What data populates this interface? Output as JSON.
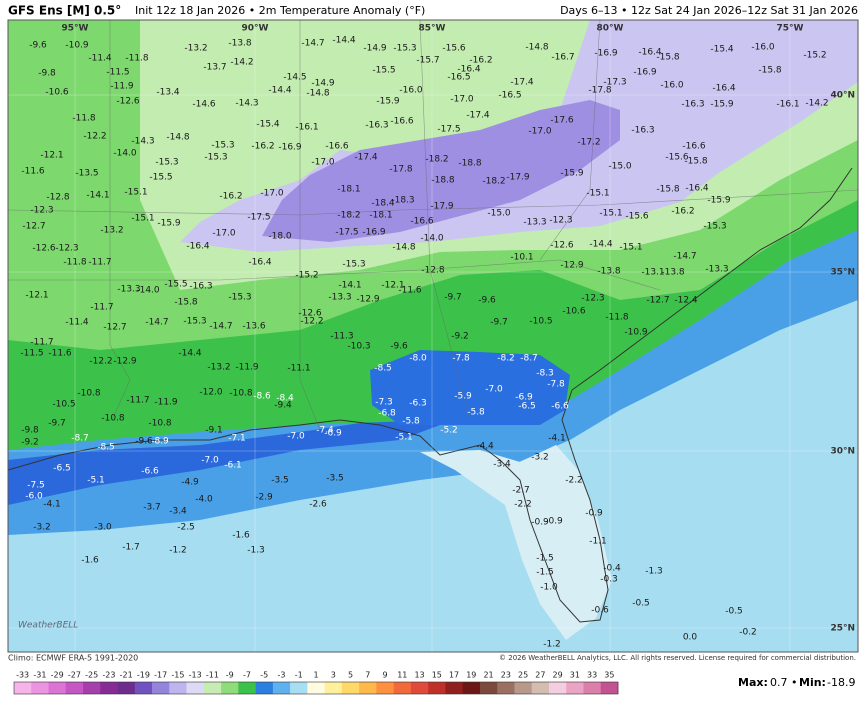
{
  "header": {
    "model": "GFS Ens [M] 0.5°",
    "init": "Init 12z 18 Jan 2026 • 2m Temperature Anomaly (°F)",
    "period": "Days 6–13 • 12z Sat 24 Jan 2026–12z Sat 31 Jan 2026"
  },
  "map": {
    "lon_labels": [
      "95°W",
      "90°W",
      "85°W",
      "80°W",
      "75°W"
    ],
    "lat_labels": [
      "40°N",
      "35°N",
      "30°N",
      "25°N"
    ],
    "logo": "WeatherBELL",
    "values": [
      "-9.6",
      "-10.9",
      "-11.4",
      "-11.8",
      "-11.5",
      "-9.8",
      "-11.9",
      "-13.4",
      "-12.6",
      "-10.6",
      "-14.6",
      "-14.3",
      "-13.2",
      "-13.8",
      "-14.2",
      "-13.7",
      "-14.7",
      "-14.4",
      "-14.9",
      "-15.3",
      "-15.6",
      "-15.7",
      "-14.8",
      "-16.7",
      "-16.9",
      "-16.4",
      "-15.8",
      "-15.4",
      "-16.0",
      "-15.2",
      "-14.5",
      "-14.9",
      "-14.4",
      "-14.8",
      "-15.5",
      "-16.2",
      "-16.4",
      "-16.5",
      "-17.4",
      "-16.5",
      "-17.0",
      "-16.0",
      "-15.9",
      "-17.4",
      "-17.8",
      "-17.3",
      "-16.9",
      "-16.0",
      "-16.4",
      "-15.8",
      "-16.3",
      "-15.9",
      "-16.1",
      "-14.2",
      "-11.8",
      "-12.2",
      "-14.3",
      "-14.8",
      "-14.0",
      "-15.3",
      "-15.3",
      "-15.3",
      "-16.2",
      "-16.9",
      "-15.4",
      "-16.1",
      "-16.3",
      "-16.6",
      "-17.5",
      "-17.0",
      "-17.6",
      "-17.2",
      "-16.3",
      "-16.6",
      "-15.6",
      "-15.8",
      "-12.1",
      "-11.6",
      "-13.5",
      "-15.5",
      "-16.6",
      "-17.0",
      "-17.4",
      "-17.8",
      "-18.2",
      "-18.8",
      "-17.9",
      "-18.1",
      "-18.8",
      "-18.2",
      "-15.9",
      "-15.0",
      "-12.8",
      "-14.1",
      "-15.1",
      "-16.2",
      "-17.0",
      "-18.4",
      "-18.3",
      "-17.9",
      "-15.1",
      "-15.8",
      "-16.4",
      "-12.3",
      "-15.1",
      "-15.9",
      "-17.5",
      "-18.2",
      "-18.1",
      "-16.6",
      "-15.0",
      "-13.3",
      "-12.3",
      "-15.1",
      "-15.6",
      "-16.2",
      "-15.9",
      "-12.7",
      "-13.2",
      "-17.0",
      "-18.0",
      "-17.5",
      "-16.9",
      "-14.0",
      "-15.3",
      "-12.6",
      "-12.3",
      "-16.4",
      "-14.8",
      "-12.6",
      "-14.4",
      "-15.1",
      "-14.7",
      "-11.8",
      "-11.7",
      "-16.4",
      "-15.3",
      "-12.8",
      "-10.1",
      "-12.9",
      "-13.8",
      "-13.1",
      "-13.8",
      "-13.3",
      "-15.2",
      "-13.3",
      "-14.0",
      "-15.5",
      "-16.3",
      "-12.1",
      "-14.1",
      "-12.1",
      "-11.6",
      "-9.7",
      "-9.6",
      "-12.3",
      "-12.7",
      "-12.4",
      "-15.8",
      "-15.3",
      "-13.3",
      "-12.9",
      "-11.7",
      "-11.4",
      "-12.7",
      "-14.7",
      "-15.3",
      "-14.7",
      "-13.6",
      "-12.6",
      "-12.2",
      "-9.7",
      "-10.5",
      "-10.6",
      "-11.8",
      "-10.9",
      "-11.7",
      "-11.5",
      "-11.6",
      "-12.2",
      "-12.9",
      "-14.4",
      "-11.3",
      "-10.3",
      "-9.6",
      "-9.2",
      "-8.0",
      "-7.8",
      "-8.2",
      "-8.7",
      "-13.2",
      "-11.9",
      "-11.1",
      "-8.5",
      "-8.3",
      "-7.8",
      "-10.8",
      "-11.7",
      "-11.9",
      "-12.0",
      "-10.8",
      "-8.6",
      "-8.4",
      "-9.4",
      "-10.5",
      "-7.3",
      "-6.8",
      "-6.3",
      "-5.9",
      "-7.0",
      "-6.9",
      "-6.5",
      "-5.8",
      "-6.6",
      "-10.8",
      "-10.8",
      "-9.8",
      "-9.7",
      "-9.1",
      "-7.4",
      "-6.9",
      "-5.8",
      "-5.2",
      "-4.1",
      "-9.2",
      "-8.7",
      "-9.6",
      "-8.9",
      "-7.1",
      "-7.0",
      "-5.1",
      "-4.4",
      "-8.5",
      "-3.2",
      "-7.0",
      "-6.1",
      "-6.5",
      "-6.6",
      "-3.4",
      "-7.5",
      "-5.1",
      "-4.9",
      "-3.5",
      "-3.5",
      "-2.2",
      "-6.0",
      "-4.0",
      "-2.9",
      "-2.7",
      "-4.1",
      "-3.7",
      "-3.4",
      "-2.6",
      "-2.2",
      "-0.9",
      "-0.9",
      "-0.9",
      "-3.2",
      "-3.0",
      "-2.5",
      "-1.6",
      "-1.1",
      "-1.7",
      "-1.2",
      "-1.3",
      "-1.6",
      "-1.5",
      "-0.4",
      "-1.3",
      "-0.3",
      "-1.5",
      "-1.0",
      "-0.5",
      "-0.6",
      "-0.5",
      "-0.2",
      "0.0",
      "-1.2"
    ]
  },
  "footer": {
    "climo": "Climo: ECMWF ERA-5 1991-2020",
    "copyright": "© 2026 WeatherBELL Analytics, LLC. All rights reserved. License required for commercial distribution.",
    "colorbar": {
      "ticks": [
        -33,
        -31,
        -29,
        -27,
        -25,
        -23,
        -21,
        -19,
        -17,
        -15,
        -13,
        -11,
        -9,
        -7,
        -5,
        -3,
        -1,
        1,
        3,
        5,
        7,
        9,
        11,
        13,
        15,
        17,
        19,
        21,
        23,
        25,
        27,
        29,
        31,
        33,
        35
      ],
      "colors": [
        "#f6b4ea",
        "#ea94e2",
        "#dc74d4",
        "#c656c4",
        "#a63eac",
        "#862c94",
        "#6e2c8c",
        "#6f52c0",
        "#9484dc",
        "#bdb5ee",
        "#dcdaf4",
        "#c6ecb4",
        "#8edc7a",
        "#3cc24a",
        "#2a7fe0",
        "#5eb0ee",
        "#a8def2",
        "#fffbe0",
        "#fff09c",
        "#ffd86a",
        "#ffb84a",
        "#ff9040",
        "#f06a3a",
        "#e04a3a",
        "#c0302a",
        "#902020",
        "#6c1616",
        "#7c4a3c",
        "#9a7060",
        "#b8988a",
        "#d4bcb0",
        "#f2cede",
        "#eaa4c4",
        "#da7eaa",
        "#c25292"
      ]
    },
    "max_label": "Max:",
    "max": "0.7",
    "sep": "•",
    "min_label": "Min:",
    "min": "-18.9"
  }
}
